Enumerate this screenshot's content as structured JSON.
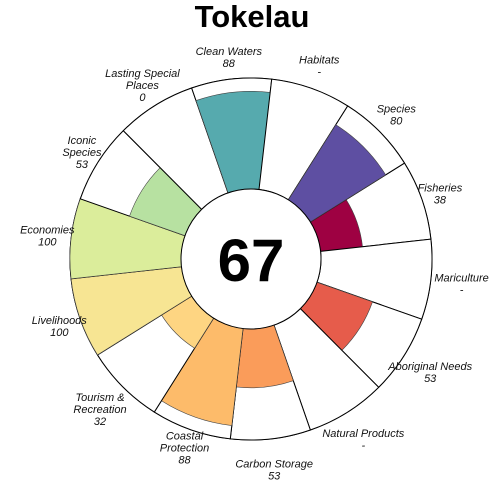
{
  "chart_data": {
    "type": "flower",
    "title": "Tokelau",
    "center_score": "67",
    "max_value": 100,
    "petals": [
      {
        "label": "Fisheries",
        "score": "38",
        "value": 38,
        "color": "#9e0142"
      },
      {
        "label": "Mariculture",
        "score": "-",
        "value": 0,
        "color": "#c0304f"
      },
      {
        "label": "Aboriginal Needs",
        "score": "53",
        "value": 53,
        "color": "#e65c4b"
      },
      {
        "label": "Natural Products",
        "score": "-",
        "value": 0,
        "color": "#f57f4a"
      },
      {
        "label": "Carbon Storage",
        "score": "53",
        "value": 53,
        "color": "#fa9c5a"
      },
      {
        "label": "Coastal Protection",
        "score": "88",
        "value": 88,
        "color": "#fdbb6a"
      },
      {
        "label": "Tourism & Recreation",
        "score": "32",
        "value": 32,
        "color": "#fed582"
      },
      {
        "label": "Livelihoods",
        "score": "100",
        "value": 100,
        "color": "#f7e593"
      },
      {
        "label": "Economies",
        "score": "100",
        "value": 100,
        "color": "#dbed9b"
      },
      {
        "label": "Iconic Species",
        "score": "53",
        "value": 53,
        "color": "#b7e1a1"
      },
      {
        "label": "Lasting Special Places",
        "score": "0",
        "value": 0,
        "color": "#86cfa5"
      },
      {
        "label": "Clean Waters",
        "score": "88",
        "value": 88,
        "color": "#56aaae"
      },
      {
        "label": "Habitats",
        "score": "-",
        "value": 0,
        "color": "#3f86bc"
      },
      {
        "label": "Species",
        "score": "80",
        "value": 80,
        "color": "#5e4fa2"
      }
    ]
  }
}
